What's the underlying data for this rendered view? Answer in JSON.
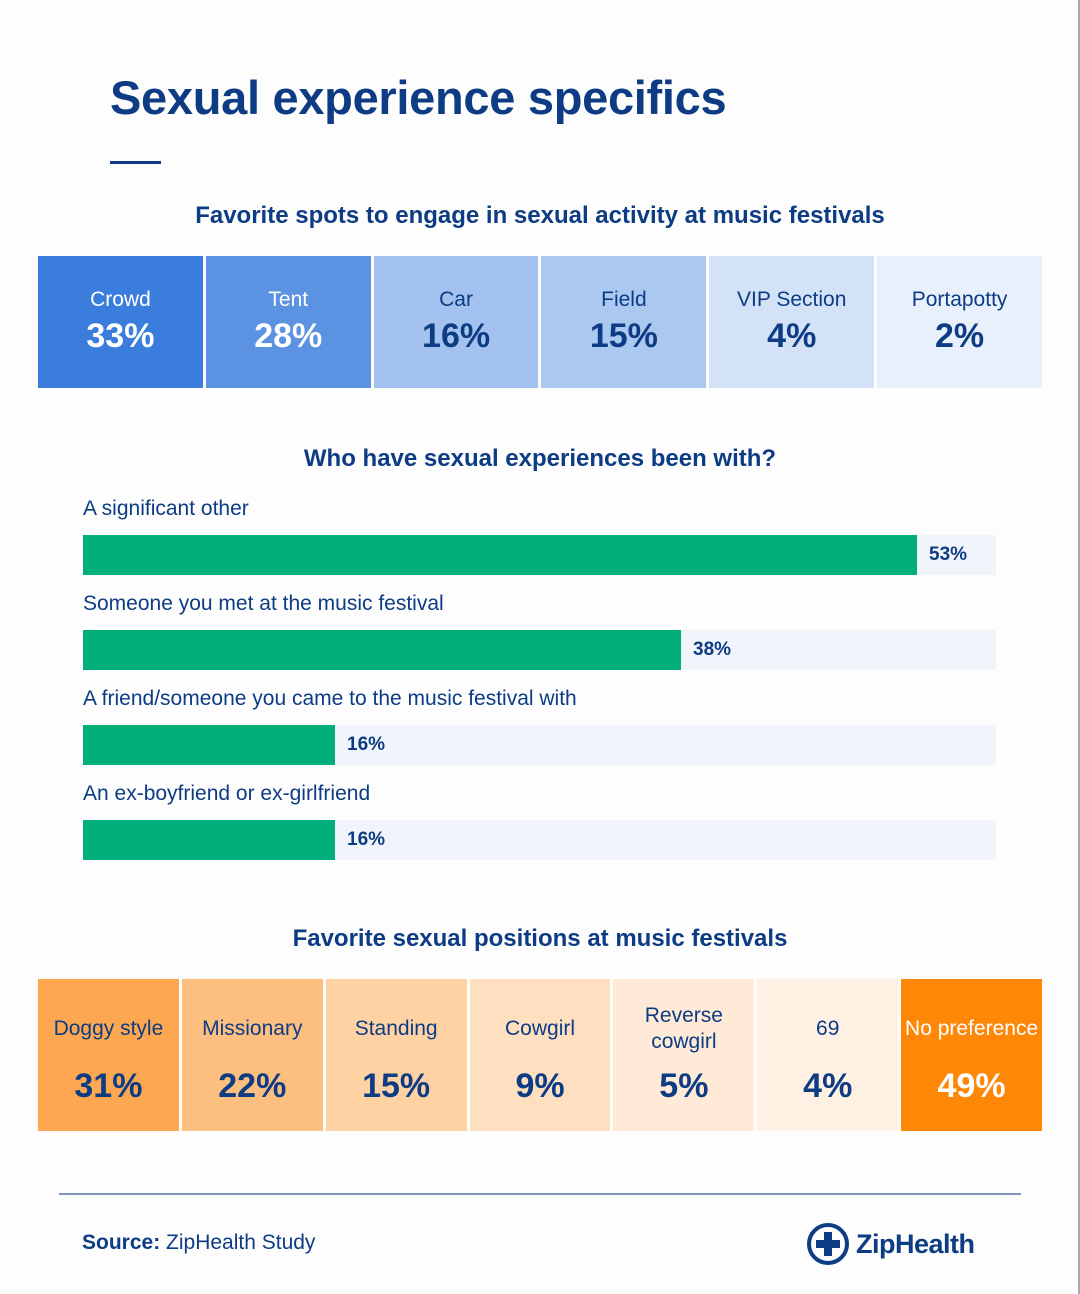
{
  "title": "Sexual experience specifics",
  "spots": {
    "title": "Favorite spots to engage in sexual activity at music festivals",
    "items": [
      {
        "label": "Crowd",
        "value": "33%",
        "bg": "#3a7ddd",
        "fg": "#ffffff"
      },
      {
        "label": "Tent",
        "value": "28%",
        "bg": "#5b93e2",
        "fg": "#ffffff"
      },
      {
        "label": "Car",
        "value": "16%",
        "bg": "#a3c2ef",
        "fg": "#0d3c84"
      },
      {
        "label": "Field",
        "value": "15%",
        "bg": "#aac8f0",
        "fg": "#0d3c84"
      },
      {
        "label": "VIP Section",
        "value": "4%",
        "bg": "#d3e2f7",
        "fg": "#0d3c84"
      },
      {
        "label": "Portapotty",
        "value": "2%",
        "bg": "#e8f0fb",
        "fg": "#0d3c84"
      }
    ]
  },
  "partners": {
    "title": "Who have sexual experiences been with?",
    "items": [
      {
        "label": "A significant other",
        "value": "53%"
      },
      {
        "label": "Someone you met at the music festival",
        "value": "38%"
      },
      {
        "label": "A friend/someone you came to the music festival with",
        "value": "16%"
      },
      {
        "label": "An ex-boyfriend or ex-girlfriend",
        "value": "16%"
      }
    ],
    "bar_color": "#00af7a"
  },
  "positions": {
    "title": "Favorite sexual positions at music festivals",
    "items": [
      {
        "label": "Doggy style",
        "value": "31%",
        "bg": "#fda750",
        "fg": "#0d3c84"
      },
      {
        "label": "Missionary",
        "value": "22%",
        "bg": "#fdbf80",
        "fg": "#0d3c84"
      },
      {
        "label": "Standing",
        "value": "15%",
        "bg": "#fed2a3",
        "fg": "#0d3c84"
      },
      {
        "label": "Cowgirl",
        "value": "9%",
        "bg": "#fee0c0",
        "fg": "#0d3c84"
      },
      {
        "label": "Reverse cowgirl",
        "value": "5%",
        "bg": "#feead6",
        "fg": "#0d3c84"
      },
      {
        "label": "69",
        "value": "4%",
        "bg": "#fef1e4",
        "fg": "#0d3c84"
      },
      {
        "label": "No preference",
        "value": "49%",
        "bg": "#ff8708",
        "fg": "#ffffff"
      }
    ]
  },
  "footer": {
    "source_label": "Source:",
    "source_text": " ZipHealth Study",
    "logo_text": "ZipHealth"
  },
  "chart_data": [
    {
      "type": "table",
      "title": "Favorite spots to engage in sexual activity at music festivals",
      "categories": [
        "Crowd",
        "Tent",
        "Car",
        "Field",
        "VIP Section",
        "Portapotty"
      ],
      "values": [
        33,
        28,
        16,
        15,
        4,
        2
      ],
      "unit": "%"
    },
    {
      "type": "bar",
      "orientation": "horizontal",
      "title": "Who have sexual experiences been with?",
      "categories": [
        "A significant other",
        "Someone you met at the music festival",
        "A friend/someone you came to the music festival with",
        "An ex-boyfriend or ex-girlfriend"
      ],
      "values": [
        53,
        38,
        16,
        16
      ],
      "unit": "%",
      "xlim": [
        0,
        58
      ],
      "xlabel": "",
      "ylabel": "",
      "grid": false
    },
    {
      "type": "table",
      "title": "Favorite sexual positions at music festivals",
      "categories": [
        "Doggy style",
        "Missionary",
        "Standing",
        "Cowgirl",
        "Reverse cowgirl",
        "69",
        "No preference"
      ],
      "values": [
        31,
        22,
        15,
        9,
        5,
        4,
        49
      ],
      "unit": "%"
    }
  ]
}
